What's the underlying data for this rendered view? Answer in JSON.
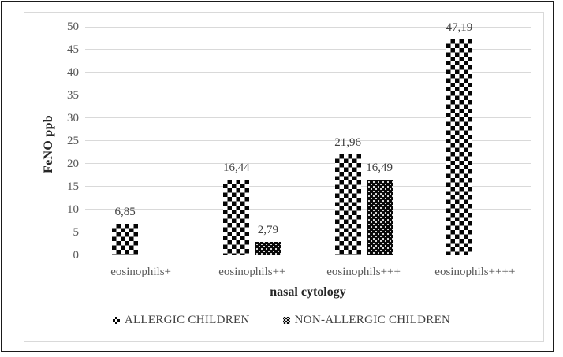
{
  "chart_data": {
    "type": "bar",
    "title": "",
    "xlabel": "nasal cytology",
    "ylabel": "FeNO ppb",
    "categories": [
      "eosinophils+",
      "eosinophils++",
      "eosinophils+++",
      "eosinophils++++"
    ],
    "series": [
      {
        "name": "ALLERGIC CHILDREN",
        "pattern": "checkerboard",
        "values": [
          6.85,
          16.44,
          21.96,
          47.19
        ],
        "labels": [
          "6,85",
          "16,44",
          "21,96",
          "47,19"
        ]
      },
      {
        "name": "NON-ALLERGIC CHILDREN",
        "pattern": "dotted-diamond",
        "values": [
          null,
          2.79,
          16.49,
          null
        ],
        "labels": [
          null,
          "2,79",
          "16,49",
          null
        ]
      }
    ],
    "ylim": [
      0,
      50
    ],
    "ytick_step": 5,
    "grid": true,
    "legend_position": "bottom"
  },
  "colors": {
    "bar_fill": "#000000",
    "grid": "#d9d9d9",
    "axis_line": "#bfbfbf",
    "tick_text": "#595959",
    "value_label_text": "#404040",
    "axis_title_text": "#262626",
    "frame_border": "#d9d9d9",
    "outer_border": "#1a1a1a"
  }
}
